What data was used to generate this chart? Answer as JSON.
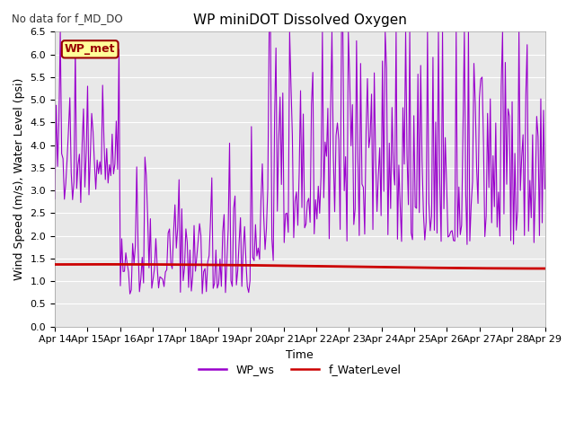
{
  "title": "WP miniDOT Dissolved Oxygen",
  "subtitle": "No data for f_MD_DO",
  "ylabel": "Wind Speed (m/s), Water Level (psi)",
  "xlabel": "Time",
  "ylim": [
    0.0,
    6.5
  ],
  "yticks": [
    0.0,
    0.5,
    1.0,
    1.5,
    2.0,
    2.5,
    3.0,
    3.5,
    4.0,
    4.5,
    5.0,
    5.5,
    6.0,
    6.5
  ],
  "x_tick_labels": [
    "Apr 14",
    "Apr 15",
    "Apr 16",
    "Apr 17",
    "Apr 18",
    "Apr 19",
    "Apr 20",
    "Apr 21",
    "Apr 22",
    "Apr 23",
    "Apr 24",
    "Apr 25",
    "Apr 26",
    "Apr 27",
    "Apr 28",
    "Apr 29"
  ],
  "legend_entries": [
    "WP_ws",
    "f_WaterLevel"
  ],
  "legend_colors": [
    "#9900cc",
    "#cc0000"
  ],
  "wp_met_box_facecolor": "#ffff99",
  "wp_met_text_color": "#990000",
  "wp_met_border_color": "#990000",
  "fig_bg_color": "#ffffff",
  "plot_bg_color": "#e8e8e8",
  "grid_color": "#ffffff",
  "ws_color": "#9900cc",
  "water_level_color": "#cc0000",
  "water_level_base": 1.33,
  "subtitle_color": "#333333",
  "title_fontsize": 11,
  "label_fontsize": 9,
  "tick_fontsize": 8
}
